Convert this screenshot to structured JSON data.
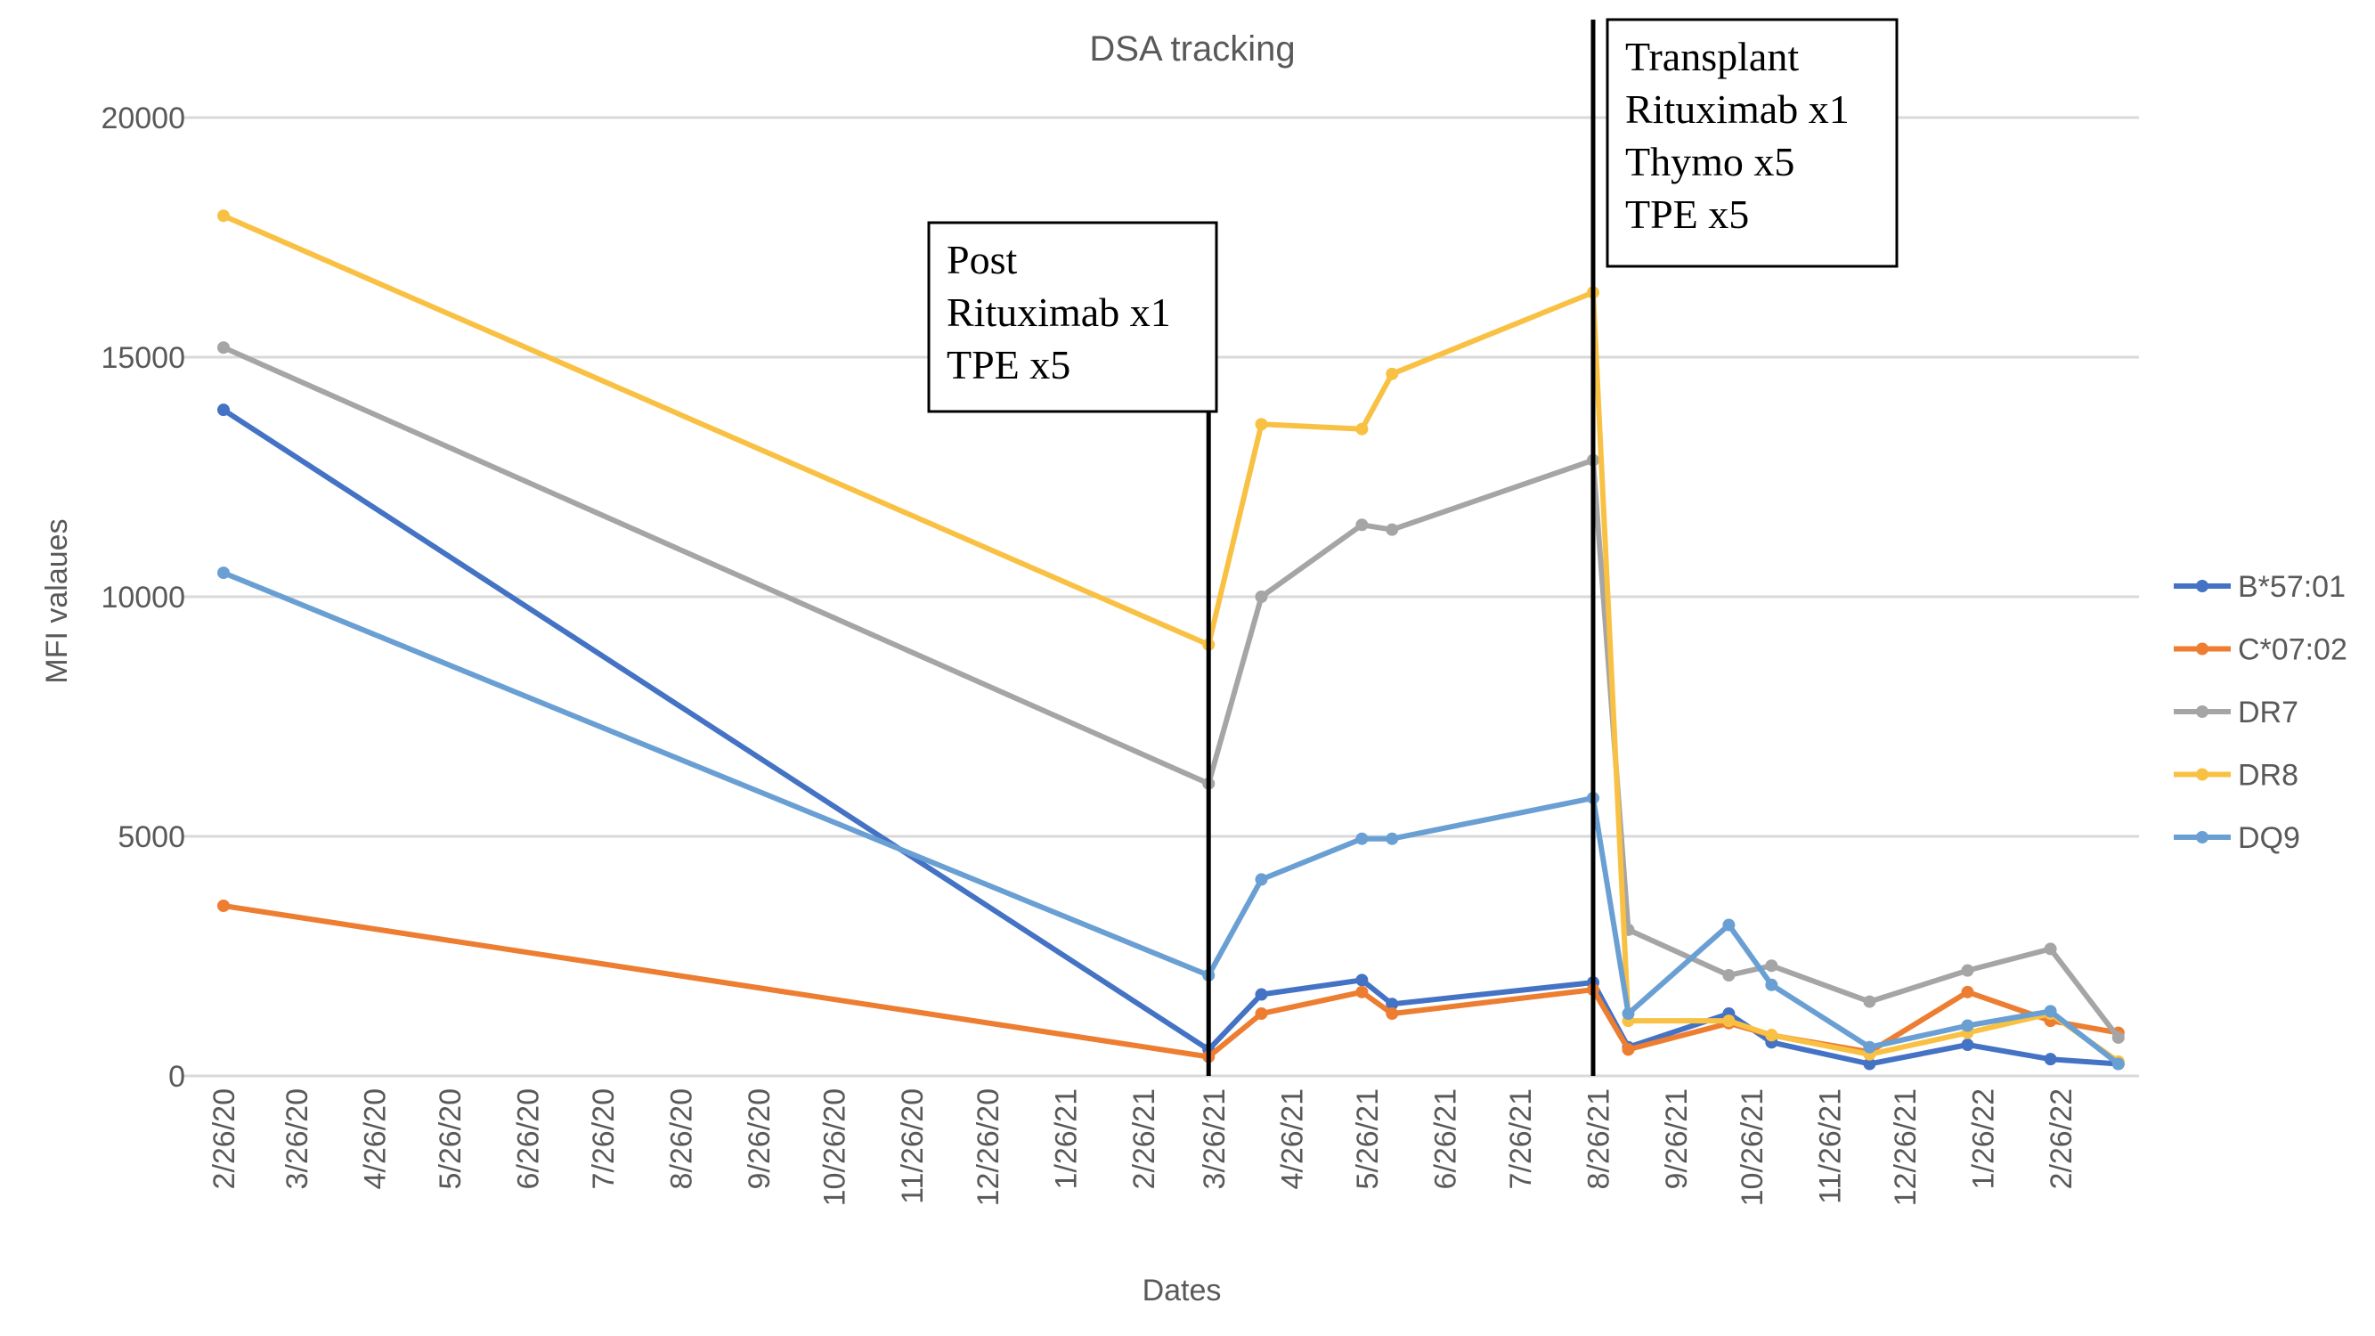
{
  "chart_data": {
    "type": "line",
    "title": "DSA tracking",
    "xlabel": "Dates",
    "ylabel": "MFI valaues",
    "ylim": [
      0,
      20000
    ],
    "yticks": [
      0,
      5000,
      10000,
      15000,
      20000
    ],
    "xticks": [
      "2/26/20",
      "3/26/20",
      "4/26/20",
      "5/26/20",
      "6/26/20",
      "7/26/20",
      "8/26/20",
      "9/26/20",
      "10/26/20",
      "11/26/20",
      "12/26/20",
      "1/26/21",
      "2/26/21",
      "3/26/21",
      "4/26/21",
      "5/26/21",
      "6/26/21",
      "7/26/21",
      "8/26/21",
      "9/26/21",
      "10/26/21",
      "11/26/21",
      "12/26/21",
      "1/26/22",
      "2/26/22"
    ],
    "grid": true,
    "legend_position": "right",
    "x": [
      "2020-02-26",
      "2021-03-24",
      "2021-04-14",
      "2021-05-24",
      "2021-06-05",
      "2021-08-24",
      "2021-09-07",
      "2021-10-17",
      "2021-11-03",
      "2021-12-12",
      "2022-01-20",
      "2022-02-22",
      "2022-03-21"
    ],
    "series": [
      {
        "name": "B*57:01",
        "color": "#4472C4",
        "values": [
          13900,
          550,
          1700,
          2000,
          1500,
          1950,
          600,
          1300,
          700,
          250,
          650,
          350,
          250
        ]
      },
      {
        "name": "C*07:02",
        "color": "#ED7D31",
        "values": [
          3550,
          400,
          1300,
          1750,
          1300,
          1800,
          550,
          1100,
          850,
          500,
          1750,
          1150,
          900
        ]
      },
      {
        "name": "DR7",
        "color": "#A5A5A5",
        "values": [
          15200,
          6100,
          10000,
          11500,
          11400,
          12850,
          3050,
          2100,
          2300,
          1550,
          2200,
          2650,
          800
        ]
      },
      {
        "name": "DR8",
        "color": "#F9C143",
        "values": [
          17950,
          9000,
          13600,
          13500,
          14650,
          16350,
          1150,
          1150,
          850,
          450,
          900,
          1300,
          300
        ]
      },
      {
        "name": "DQ9",
        "color": "#6A9FD3",
        "values": [
          10500,
          2100,
          4100,
          4950,
          4950,
          5800,
          1300,
          3150,
          1900,
          600,
          1050,
          1350,
          250
        ]
      }
    ],
    "annotations": [
      {
        "date": "2021-03-24",
        "lines": [
          "Post",
          "Rituximab x1",
          "TPE x5"
        ]
      },
      {
        "date": "2021-08-24",
        "lines": [
          "Transplant",
          "Rituximab x1",
          "Thymo x5",
          "TPE x5"
        ]
      }
    ]
  }
}
